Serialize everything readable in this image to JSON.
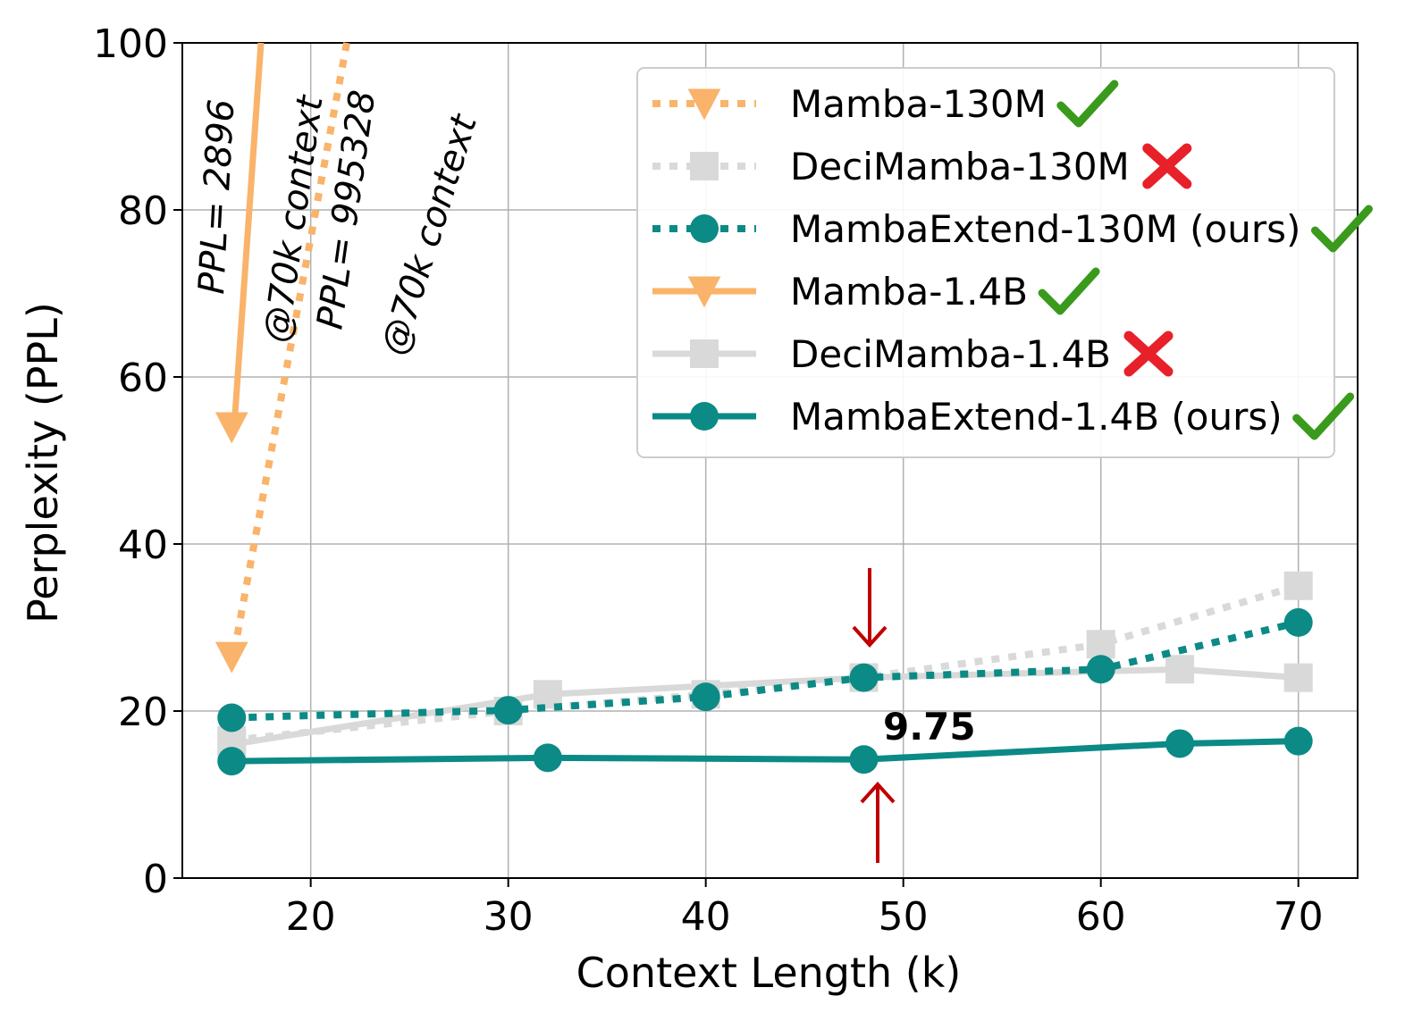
{
  "chart_data": {
    "type": "line",
    "title": "",
    "xlabel": "Context Length (k)",
    "ylabel": "Perplexity (PPL)",
    "xlim": [
      13.5,
      73
    ],
    "ylim": [
      0,
      100
    ],
    "xticks": [
      20,
      30,
      40,
      50,
      60,
      70
    ],
    "yticks": [
      0,
      20,
      40,
      60,
      80,
      100
    ],
    "grid": true,
    "legend_position": "top-right",
    "colors": {
      "mamba": "#FAB36A",
      "decimamba": "#D9D9D9",
      "mambaextend": "#0B8A86",
      "cross": "#E8202A",
      "check": "#3A9A1C",
      "red_arrow": "#C00000"
    },
    "series": [
      {
        "name": "Mamba-130M",
        "status": "check-icon",
        "style": "dotted",
        "marker": "triangle-down",
        "color": "#FAB36A",
        "x": [
          16
        ],
        "y": [
          26.5
        ]
      },
      {
        "name": "DeciMamba-130M",
        "status": "cross-icon",
        "style": "dotted",
        "marker": "square",
        "color": "#D9D9D9",
        "x": [
          16,
          30,
          40,
          48,
          60,
          70
        ],
        "y": [
          16.5,
          20,
          22,
          24,
          28,
          35
        ]
      },
      {
        "name": "MambaExtend-130M (ours)",
        "status": "check-icon",
        "style": "dotted",
        "marker": "circle",
        "color": "#0B8A86",
        "x": [
          16,
          30,
          40,
          48,
          60,
          70
        ],
        "y": [
          19.2,
          20.1,
          21.7,
          24,
          25,
          30.6
        ]
      },
      {
        "name": "Mamba-1.4B",
        "status": "check-icon",
        "style": "solid",
        "marker": "triangle-down",
        "color": "#FAB36A",
        "x": [
          16
        ],
        "y": [
          54
        ]
      },
      {
        "name": "DeciMamba-1.4B",
        "status": "cross-icon",
        "style": "solid",
        "marker": "square",
        "color": "#D9D9D9",
        "x": [
          16,
          32,
          48,
          64,
          70
        ],
        "y": [
          16,
          22,
          24,
          25,
          24
        ]
      },
      {
        "name": "MambaExtend-1.4B (ours)",
        "status": "check-icon",
        "style": "solid",
        "marker": "circle",
        "color": "#0B8A86",
        "x": [
          16,
          32,
          48,
          64,
          70
        ],
        "y": [
          14,
          14.4,
          14.2,
          16.1,
          16.4
        ]
      }
    ],
    "annotations": {
      "ppl_1_4b": "PPL= 2896",
      "ppl_1_4b_ctx": "@70k context",
      "ppl_130m": "PPL= 995328",
      "ppl_130m_ctx": "@70k context",
      "value_label": "9.75"
    }
  }
}
